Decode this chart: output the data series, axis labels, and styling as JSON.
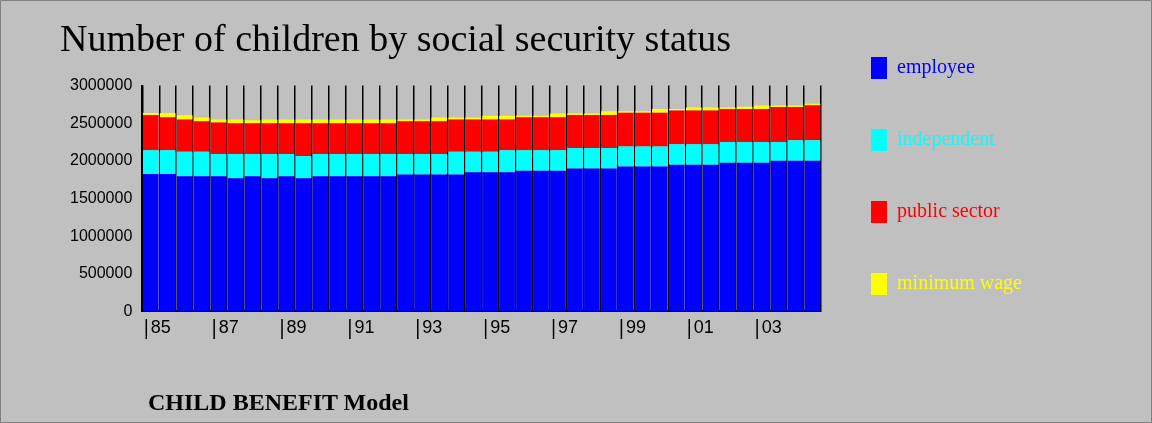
{
  "chart_data": {
    "type": "bar",
    "title": "Number of children by social security status",
    "annotations": [
      "CHILD BENEFIT Model"
    ],
    "categories": [
      "85",
      null,
      null,
      null,
      "87",
      null,
      null,
      null,
      "89",
      null,
      null,
      null,
      "91",
      null,
      null,
      null,
      "93",
      null,
      null,
      null,
      "95",
      null,
      null,
      null,
      "97",
      null,
      null,
      null,
      "99",
      null,
      null,
      null,
      "01",
      null,
      null,
      null,
      "03",
      null,
      null,
      null
    ],
    "stacked": true,
    "ylim": [
      0,
      3000000
    ],
    "yticks": [
      0,
      500000,
      1000000,
      1500000,
      2000000,
      2500000,
      3000000
    ],
    "grid": "x",
    "legend": "right",
    "series": [
      {
        "name": "employee",
        "color": "#0000ff",
        "values": [
          1825000,
          1825000,
          1795000,
          1795000,
          1795000,
          1770000,
          1795000,
          1770000,
          1795000,
          1770000,
          1795000,
          1795000,
          1795000,
          1795000,
          1795000,
          1820000,
          1820000,
          1820000,
          1820000,
          1850000,
          1850000,
          1850000,
          1870000,
          1870000,
          1870000,
          1900000,
          1900000,
          1900000,
          1925000,
          1925000,
          1925000,
          1950000,
          1950000,
          1950000,
          1975000,
          1975000,
          1975000,
          2000000,
          2000000,
          2000000
        ]
      },
      {
        "name": "independent",
        "color": "#00ffff",
        "values": [
          315000,
          315000,
          325000,
          325000,
          295000,
          320000,
          295000,
          320000,
          295000,
          295000,
          295000,
          295000,
          295000,
          295000,
          295000,
          270000,
          270000,
          270000,
          300000,
          270000,
          270000,
          290000,
          270000,
          270000,
          270000,
          270000,
          270000,
          270000,
          265000,
          265000,
          265000,
          270000,
          270000,
          270000,
          275000,
          275000,
          275000,
          250000,
          275000,
          275000
        ]
      },
      {
        "name": "public sector",
        "color": "#ff0000",
        "values": [
          470000,
          440000,
          430000,
          405000,
          420000,
          410000,
          410000,
          410000,
          410000,
          435000,
          410000,
          410000,
          410000,
          410000,
          410000,
          435000,
          435000,
          435000,
          430000,
          430000,
          430000,
          410000,
          440000,
          440000,
          440000,
          440000,
          440000,
          440000,
          450000,
          450000,
          450000,
          450000,
          450000,
          450000,
          440000,
          440000,
          440000,
          465000,
          440000,
          465000
        ]
      },
      {
        "name": "minimum wage",
        "color": "#ffff00",
        "values": [
          25000,
          55000,
          55000,
          50000,
          40000,
          50000,
          40000,
          50000,
          50000,
          50000,
          50000,
          50000,
          50000,
          50000,
          50000,
          25000,
          25000,
          50000,
          25000,
          25000,
          50000,
          50000,
          20000,
          20000,
          50000,
          20000,
          20000,
          50000,
          20000,
          20000,
          50000,
          20000,
          40000,
          40000,
          20000,
          30000,
          45000,
          20000,
          20000,
          20000
        ]
      }
    ]
  }
}
